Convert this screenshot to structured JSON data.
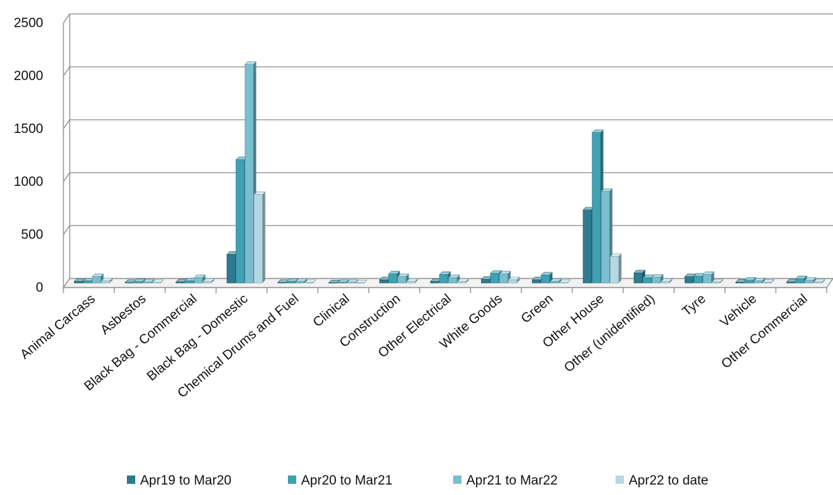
{
  "chart_data": {
    "type": "bar",
    "title": "",
    "xlabel": "",
    "ylabel": "",
    "ylim": [
      0,
      2500
    ],
    "yticks": [
      0,
      500,
      1000,
      1500,
      2000,
      2500
    ],
    "grid": true,
    "legend_position": "bottom",
    "style": "3d-clustered-column",
    "categories": [
      "Animal Carcass",
      "Asbestos",
      "Black Bag - Commercial",
      "Black Bag - Domestic",
      "Chemical Drums and Fuel",
      "Clinical",
      "Construction",
      "Other Electrical",
      "White Goods",
      "Green",
      "Other House",
      "Other (unidentified)",
      "Tyre",
      "Vehicle",
      "Other Commercial"
    ],
    "series": [
      {
        "name": "Apr19 to Mar20",
        "color": "#2e7a8e",
        "values": [
          15,
          5,
          10,
          270,
          5,
          2,
          30,
          15,
          35,
          30,
          690,
          95,
          60,
          8,
          10
        ]
      },
      {
        "name": "Apr20 to Mar21",
        "color": "#3fa1b3",
        "values": [
          20,
          12,
          20,
          1165,
          15,
          5,
          85,
          80,
          90,
          75,
          1420,
          50,
          65,
          25,
          40
        ]
      },
      {
        "name": "Apr21 to Mar22",
        "color": "#79bfcf",
        "values": [
          60,
          10,
          50,
          2065,
          15,
          5,
          60,
          50,
          85,
          15,
          865,
          55,
          80,
          20,
          25
        ]
      },
      {
        "name": "Apr22 to date",
        "color": "#b5d9e3",
        "values": [
          20,
          5,
          15,
          835,
          5,
          2,
          15,
          15,
          30,
          5,
          250,
          15,
          10,
          8,
          10
        ]
      }
    ]
  }
}
